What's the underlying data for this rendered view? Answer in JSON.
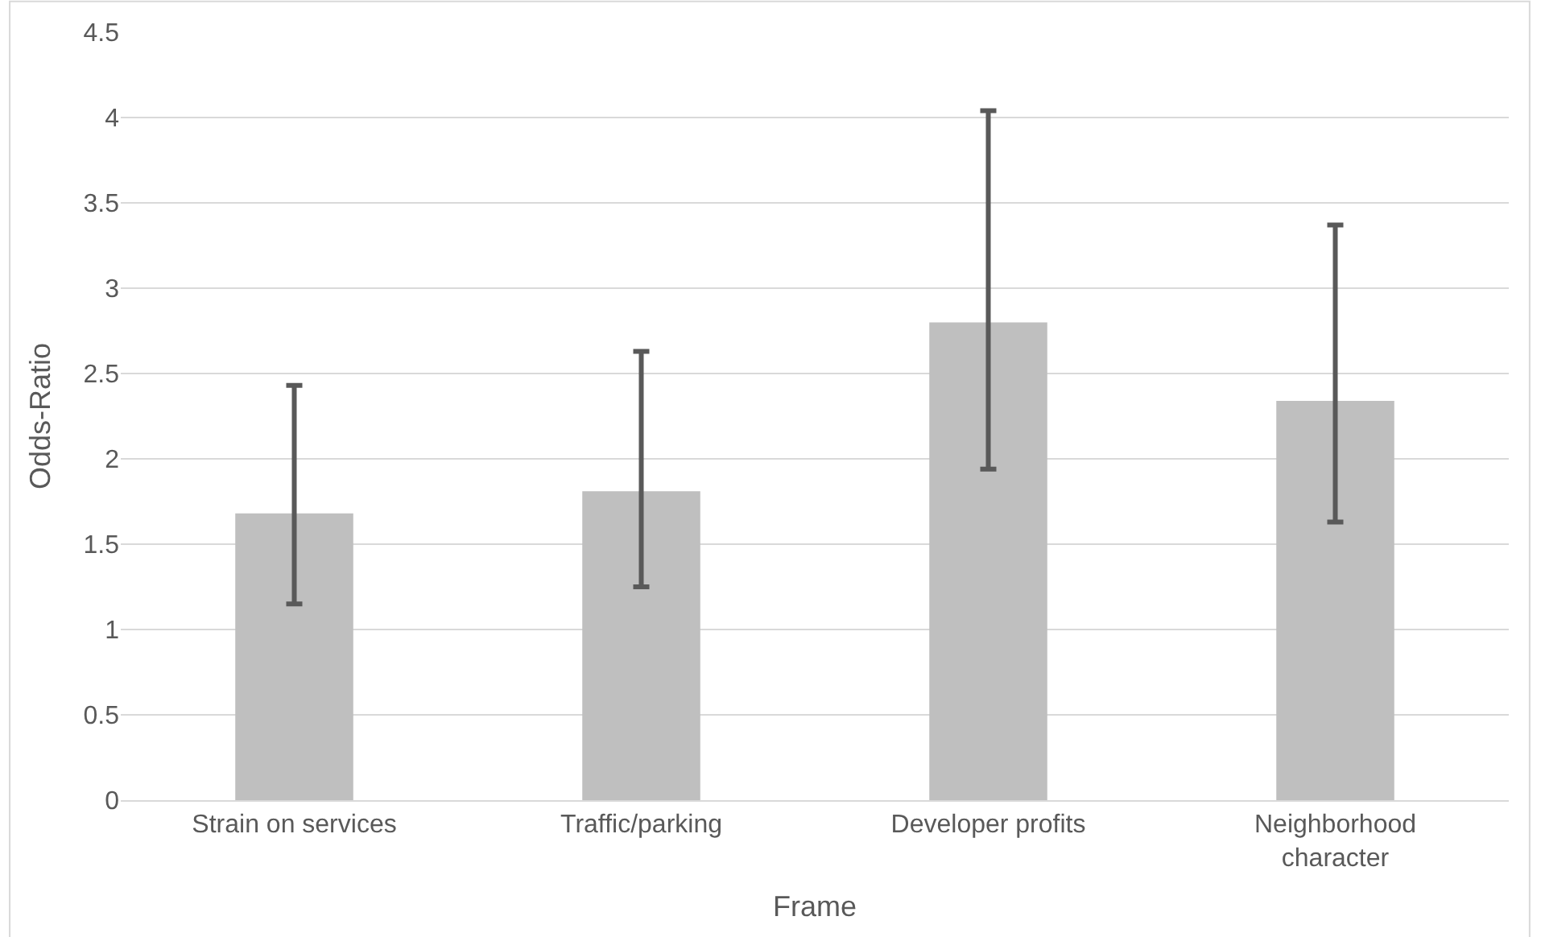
{
  "chart_data": {
    "type": "bar",
    "xlabel": "Frame",
    "ylabel": "Odds-Ratio",
    "categories": [
      "Strain on services",
      "Traffic/parking",
      "Developer profits",
      "Neighborhood character"
    ],
    "values": [
      1.68,
      1.81,
      2.8,
      2.34
    ],
    "color": "#bfbfbf",
    "errors": [
      [
        1.15,
        2.43
      ],
      [
        1.25,
        2.63
      ],
      [
        1.94,
        4.04
      ],
      [
        1.63,
        3.37
      ]
    ],
    "ylim": [
      0,
      4.5
    ],
    "yticks": [
      0,
      0.5,
      1,
      1.5,
      2,
      2.5,
      3,
      3.5,
      4,
      4.5
    ],
    "grid": "y"
  }
}
